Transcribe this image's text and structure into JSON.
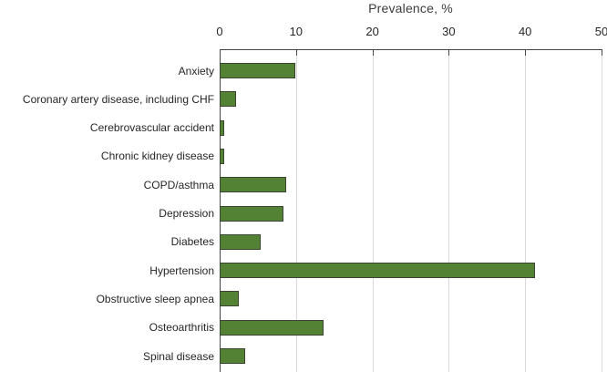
{
  "chart_data": {
    "type": "bar",
    "orientation": "horizontal",
    "title": "Prevalence, %",
    "axis_position": "top",
    "grid": true,
    "legend": false,
    "xlim": [
      0,
      50
    ],
    "x_ticks": [
      0,
      10,
      20,
      30,
      40,
      50
    ],
    "categories": [
      "Anxiety",
      "Coronary artery disease, including CHF",
      "Cerebrovascular accident",
      "Chronic kidney disease",
      "COPD/asthma",
      "Depression",
      "Diabetes",
      "Hypertension",
      "Obstructive sleep apnea",
      "Osteoarthritis",
      "Spinal disease"
    ],
    "values": [
      9.9,
      2.2,
      0.6,
      0.6,
      8.7,
      8.4,
      5.4,
      41.3,
      2.5,
      13.6,
      3.4
    ]
  },
  "colors": {
    "bar_fill": "#548235",
    "bar_border": "#3a4430",
    "gridline": "#d9d9d9",
    "axis_line": "#464646",
    "text": "#262626",
    "title_text": "#3b3b3b",
    "background": "#ffffff"
  }
}
